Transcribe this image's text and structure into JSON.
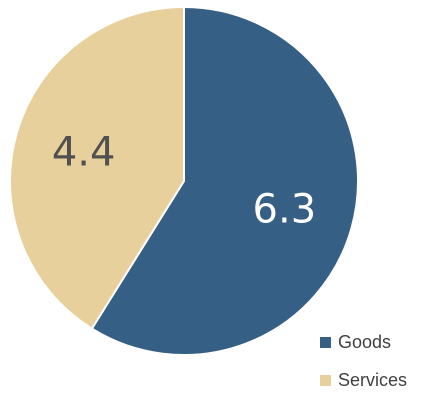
{
  "chart_data": {
    "type": "pie",
    "title": "",
    "slices": [
      {
        "name": "Goods",
        "value": 6.3,
        "label": "6.3",
        "color": "#355F84",
        "label_color": "#FFFFFF"
      },
      {
        "name": "Services",
        "value": 4.4,
        "label": "4.4",
        "color": "#E8D09C",
        "label_color": "#505050"
      }
    ],
    "start_angle_deg": 0,
    "direction": "clockwise",
    "legend_position": "bottom-right",
    "slice_border_color": "#FFFFFF"
  }
}
